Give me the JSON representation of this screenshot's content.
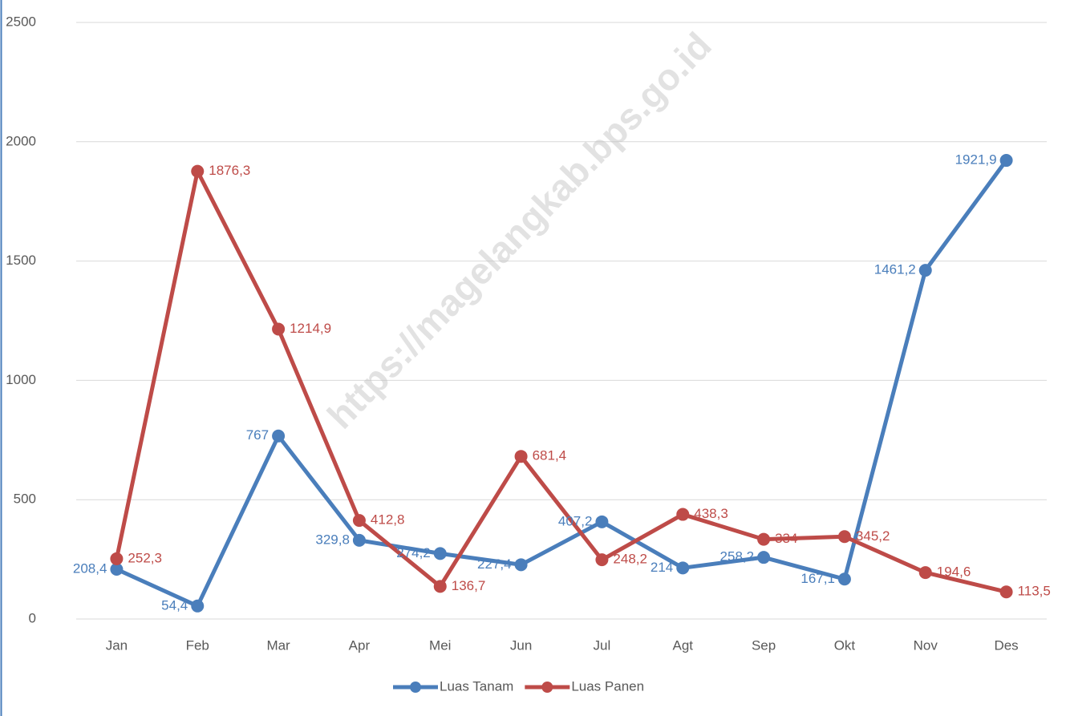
{
  "chart_data": {
    "type": "line",
    "annotation": "https://magelangkab.bps.go.id",
    "categories": [
      "Jan",
      "Feb",
      "Mar",
      "Apr",
      "Mei",
      "Jun",
      "Jul",
      "Agt",
      "Sep",
      "Okt",
      "Nov",
      "Des"
    ],
    "series": [
      {
        "name": "Luas Tanam",
        "color": "#4a7ebb",
        "values": [
          208.4,
          54.4,
          767,
          329.8,
          274.2,
          227.4,
          407.2,
          214,
          258.2,
          167.1,
          1461.2,
          1921.9
        ],
        "value_labels": [
          "208,4",
          "54,4",
          "767",
          "329,8",
          "274,2",
          "227,4",
          "407,2",
          "214",
          "258,2",
          "167,1",
          "1461,2",
          "1921,9"
        ]
      },
      {
        "name": "Luas Panen",
        "color": "#be4b48",
        "values": [
          252.3,
          1876.3,
          1214.9,
          412.8,
          136.7,
          681.4,
          248.2,
          438.3,
          334,
          345.2,
          194.6,
          113.5
        ],
        "value_labels": [
          "252,3",
          "1876,3",
          "1214,9",
          "412,8",
          "136,7",
          "681,4",
          "248,2",
          "438,3",
          "334",
          "345,2",
          "194,6",
          "113,5"
        ]
      }
    ],
    "ylim": [
      0,
      2500
    ],
    "yticks": [
      0,
      500,
      1000,
      1500,
      2000,
      2500
    ],
    "grid": true,
    "legend": "bottom"
  }
}
